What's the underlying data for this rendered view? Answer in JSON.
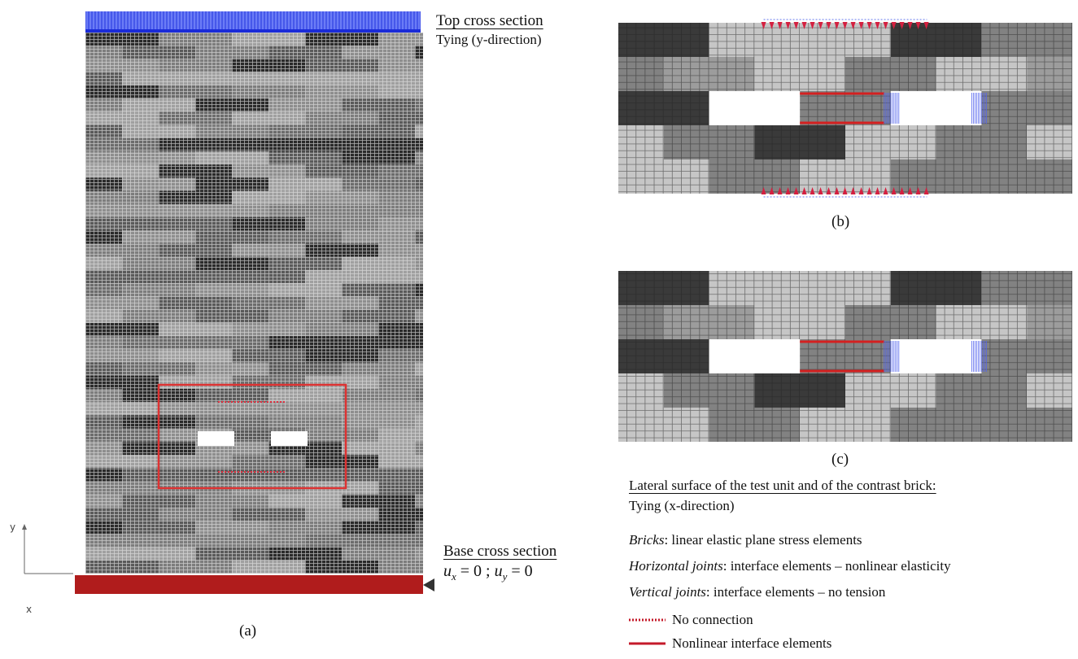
{
  "figure_a": {
    "top_label": "Top cross section",
    "top_condition": "Tying (y-direction)",
    "base_label": "Base cross section",
    "base_condition": [
      {
        "text": "u",
        "italic": true
      },
      {
        "text": "x",
        "italic": true,
        "sub": true
      },
      {
        "text": " = 0 ; "
      },
      {
        "text": "u",
        "italic": true
      },
      {
        "text": "y",
        "italic": true,
        "sub": true
      },
      {
        "text": " = 0"
      }
    ],
    "axis_y": "y",
    "axis_x": "x",
    "caption": "(a)"
  },
  "figure_b": {
    "caption": "(b)"
  },
  "figure_c": {
    "caption": "(c)"
  },
  "legend": {
    "lateral_title": "Lateral surface of the test unit and of the contrast brick:",
    "lateral_condition": "Tying (x-direction)",
    "items": [
      {
        "term": "Bricks",
        "description": ": linear elastic plane stress elements"
      },
      {
        "term": "Horizontal joints",
        "description": ": interface elements – nonlinear elasticity"
      },
      {
        "term": "Vertical joints",
        "description": ": interface elements – no tension"
      }
    ],
    "keys": [
      {
        "style": "dotted",
        "label": "No connection"
      },
      {
        "style": "solid",
        "label": "Nonlinear interface elements"
      }
    ]
  }
}
